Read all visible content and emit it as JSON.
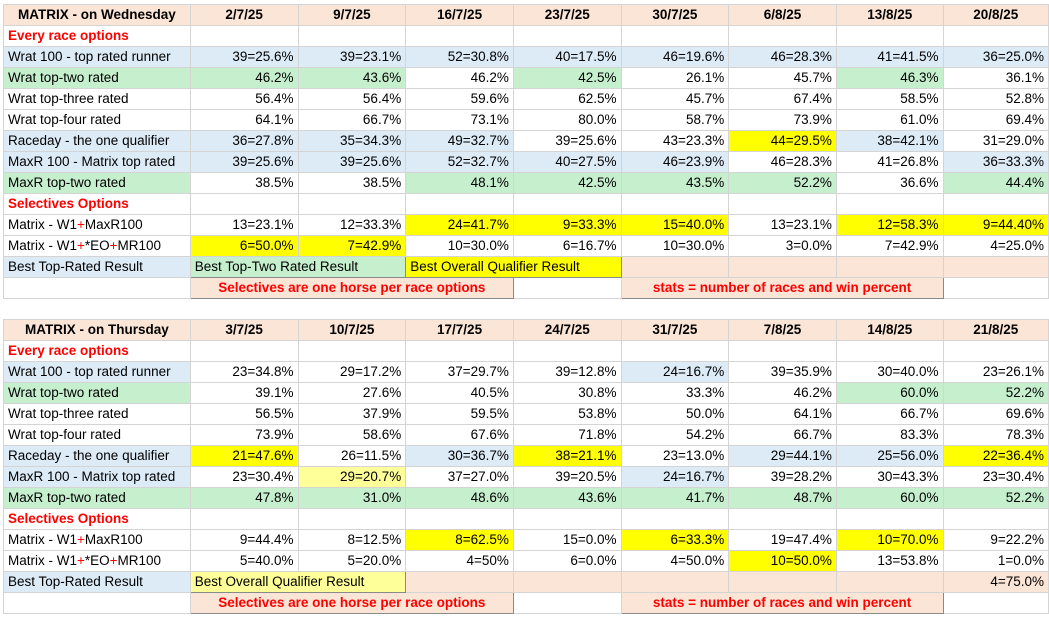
{
  "wed": {
    "title": "MATRIX - on Wednesday",
    "dates": [
      "2/7/25",
      "9/7/25",
      "16/7/25",
      "23/7/25",
      "30/7/25",
      "6/8/25",
      "13/8/25",
      "20/8/25"
    ],
    "every_race_label": "Every race options",
    "rows1": [
      {
        "label": "Wrat 100 - top rated runner",
        "v": [
          "39=25.6%",
          "39=23.1%",
          "52=30.8%",
          "40=17.5%",
          "46=19.6%",
          "46=28.3%",
          "41=41.5%",
          "36=25.0%"
        ]
      },
      {
        "label": "Wrat top-two rated",
        "v": [
          "46.2%",
          "43.6%",
          "46.2%",
          "42.5%",
          "26.1%",
          "45.7%",
          "46.3%",
          "36.1%"
        ]
      },
      {
        "label": "Wrat top-three rated",
        "v": [
          "56.4%",
          "56.4%",
          "59.6%",
          "62.5%",
          "45.7%",
          "67.4%",
          "58.5%",
          "52.8%"
        ]
      },
      {
        "label": "Wrat top-four rated",
        "v": [
          "64.1%",
          "66.7%",
          "73.1%",
          "80.0%",
          "58.7%",
          "73.9%",
          "61.0%",
          "69.4%"
        ]
      },
      {
        "label": "Raceday - the one qualifier",
        "v": [
          "36=27.8%",
          "35=34.3%",
          "49=32.7%",
          "39=25.6%",
          "43=23.3%",
          "44=29.5%",
          "38=42.1%",
          "31=29.0%"
        ]
      },
      {
        "label": "MaxR 100 - Matrix top rated",
        "v": [
          "39=25.6%",
          "39=25.6%",
          "52=32.7%",
          "40=27.5%",
          "46=23.9%",
          "46=28.3%",
          "41=26.8%",
          "36=33.3%"
        ]
      },
      {
        "label": "MaxR top-two rated",
        "v": [
          "38.5%",
          "38.5%",
          "48.1%",
          "42.5%",
          "43.5%",
          "52.2%",
          "36.6%",
          "44.4%"
        ]
      }
    ],
    "selectives_label": "Selectives Options",
    "rows2": [
      {
        "label": "Matrix - W1+MaxR100",
        "v": [
          "13=23.1%",
          "12=33.3%",
          "24=41.7%",
          "9=33.3%",
          "15=40.0%",
          "13=23.1%",
          "12=58.3%",
          "9=44.40%"
        ]
      },
      {
        "label": "Matrix - W1+*EO+MR100",
        "v": [
          "6=50.0%",
          "7=42.9%",
          "10=30.0%",
          "6=16.7%",
          "10=30.0%",
          "3=0.0%",
          "7=42.9%",
          "4=25.0%"
        ]
      }
    ],
    "legend1": "Best Top-Rated Result",
    "legend2": "Best Top-Two Rated Result",
    "legend3": "Best Overall Qualifier Result",
    "note1": "Selectives are one horse per race options",
    "note2": "stats = number of races and win percent"
  },
  "thu": {
    "title": "MATRIX - on Thursday",
    "dates": [
      "3/7/25",
      "10/7/25",
      "17/7/25",
      "24/7/25",
      "31/7/25",
      "7/8/25",
      "14/8/25",
      "21/8/25"
    ],
    "every_race_label": "Every race options",
    "rows1": [
      {
        "label": "Wrat 100 - top rated runner",
        "v": [
          "23=34.8%",
          "29=17.2%",
          "37=29.7%",
          "39=12.8%",
          "24=16.7%",
          "39=35.9%",
          "30=40.0%",
          "23=26.1%"
        ]
      },
      {
        "label": "Wrat top-two rated",
        "v": [
          "39.1%",
          "27.6%",
          "40.5%",
          "30.8%",
          "33.3%",
          "46.2%",
          "60.0%",
          "52.2%"
        ]
      },
      {
        "label": "Wrat top-three rated",
        "v": [
          "56.5%",
          "37.9%",
          "59.5%",
          "53.8%",
          "50.0%",
          "64.1%",
          "66.7%",
          "69.6%"
        ]
      },
      {
        "label": "Wrat top-four rated",
        "v": [
          "73.9%",
          "58.6%",
          "67.6%",
          "71.8%",
          "54.2%",
          "66.7%",
          "83.3%",
          "78.3%"
        ]
      },
      {
        "label": "Raceday - the one qualifier",
        "v": [
          "21=47.6%",
          "26=11.5%",
          "30=36.7%",
          "38=21.1%",
          "23=13.0%",
          "29=44.1%",
          "25=56.0%",
          "22=36.4%"
        ]
      },
      {
        "label": "MaxR 100 - Matrix top rated",
        "v": [
          "23=30.4%",
          "29=20.7%",
          "37=27.0%",
          "39=20.5%",
          "24=16.7%",
          "39=28.2%",
          "30=43.3%",
          "23=30.4%"
        ]
      },
      {
        "label": "MaxR top-two rated",
        "v": [
          "47.8%",
          "31.0%",
          "48.6%",
          "43.6%",
          "41.7%",
          "48.7%",
          "60.0%",
          "52.2%"
        ]
      }
    ],
    "selectives_label": "Selectives Options",
    "rows2": [
      {
        "label": "Matrix - W1+MaxR100",
        "v": [
          "9=44.4%",
          "8=12.5%",
          "8=62.5%",
          "15=0.0%",
          "6=33.3%",
          "19=47.4%",
          "10=70.0%",
          "9=22.2%"
        ]
      },
      {
        "label": "Matrix - W1+*EO+MR100",
        "v": [
          "5=40.0%",
          "5=20.0%",
          "4=50%",
          "6=0.0%",
          "4=50.0%",
          "10=50.0%",
          "13=53.8%",
          "1=0.0%"
        ]
      }
    ],
    "legend1": "Best Top-Rated Result",
    "legend3": "Best Overall Qualifier Result",
    "extra_val": "4=75.0%",
    "note1": "Selectives are one horse per race options",
    "note2": "stats = number of races and win percent"
  },
  "colors": {
    "header_bg": "#fbe5d6",
    "blue": "#ddebf7",
    "green": "#c6efce",
    "yellow": "#ffff00",
    "light_yellow": "#ffff99",
    "section_text": "#ff0000"
  }
}
